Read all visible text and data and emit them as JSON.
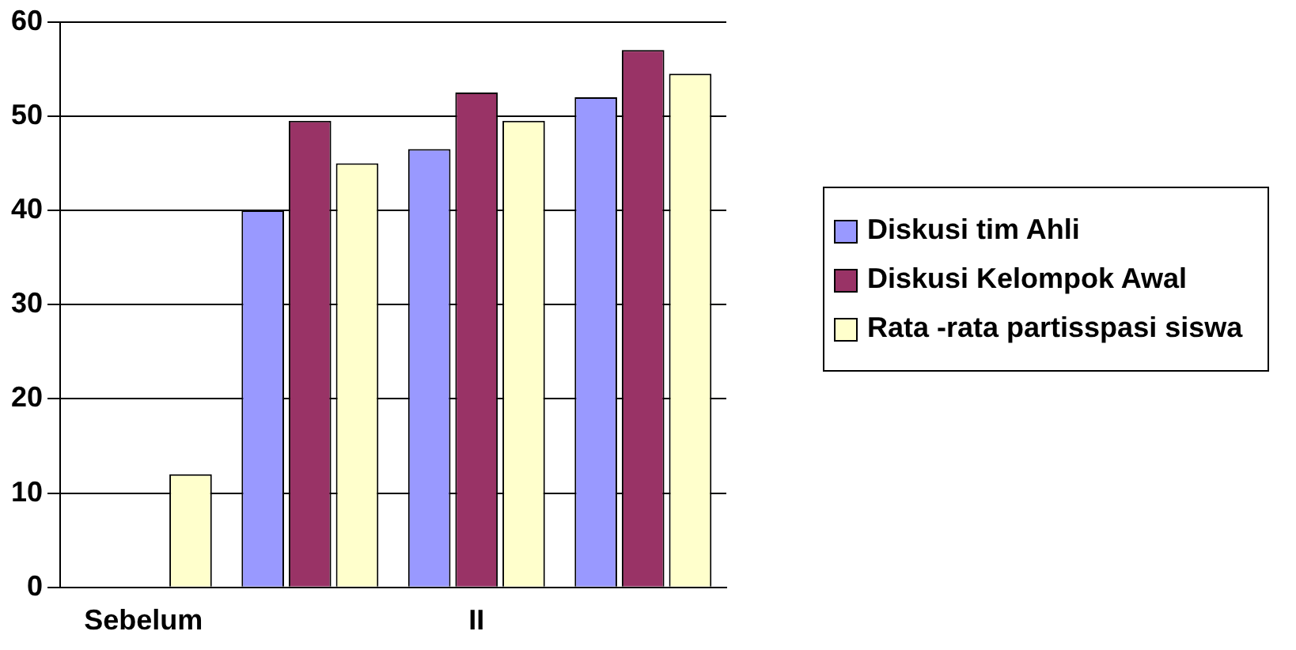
{
  "chart_data": {
    "type": "bar",
    "categories": [
      "Sebelum",
      null,
      "II",
      null
    ],
    "series": [
      {
        "name": "Diskusi tim Ahli",
        "color": "#9999ff",
        "values": [
          null,
          40,
          46.5,
          52
        ]
      },
      {
        "name": "Diskusi Kelompok Awal",
        "color": "#993366",
        "values": [
          null,
          49.5,
          52.5,
          57
        ]
      },
      {
        "name": "Rata -rata partisspasi siswa",
        "color": "#ffffcc",
        "values": [
          12,
          45,
          49.5,
          54.5
        ]
      }
    ],
    "ylim": [
      0,
      60
    ],
    "yticks": [
      0,
      10,
      20,
      30,
      40,
      50,
      60
    ],
    "grid": "y",
    "legend": "right"
  }
}
